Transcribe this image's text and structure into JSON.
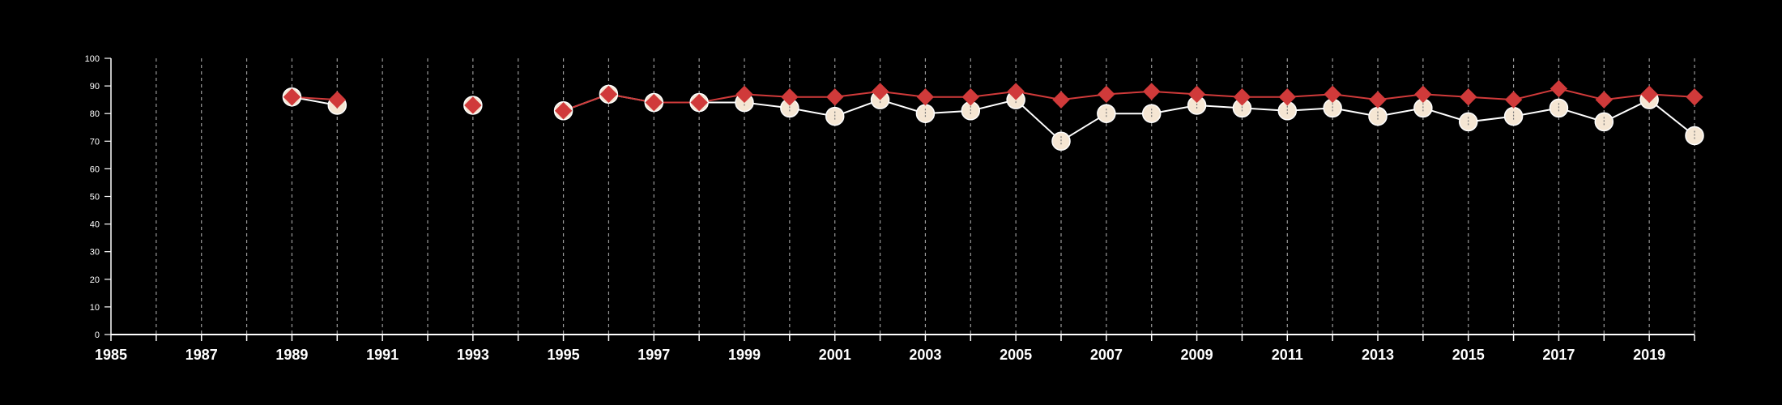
{
  "chart_data": {
    "type": "line",
    "title": "",
    "xlabel": "",
    "ylabel": "",
    "xlim": [
      1985,
      2020
    ],
    "ylim": [
      0,
      100
    ],
    "y_ticks": [
      "0",
      "10",
      "20",
      "30",
      "40",
      "50",
      "60",
      "70",
      "80",
      "90",
      "100"
    ],
    "x_tick_labels": [
      "1985",
      "1987",
      "1989",
      "1991",
      "1993",
      "1995",
      "1997",
      "1999",
      "2001",
      "2003",
      "2005",
      "2007",
      "2009",
      "2011",
      "2013",
      "2015",
      "2017",
      "2019"
    ],
    "vertical_dashed_gridlines_every_year": true,
    "legend": "none",
    "series": [
      {
        "color": "#f5e6d3",
        "line_color": "#ffffff",
        "marker": "circle",
        "segments": [
          [
            [
              1989,
              86
            ],
            [
              1990,
              83
            ]
          ],
          [
            [
              1993,
              83
            ]
          ],
          [
            [
              1995,
              81
            ],
            [
              1996,
              87
            ],
            [
              1997,
              84
            ],
            [
              1998,
              84
            ],
            [
              1999,
              84
            ],
            [
              2000,
              82
            ],
            [
              2001,
              79
            ],
            [
              2002,
              85
            ],
            [
              2003,
              80
            ],
            [
              2004,
              81
            ],
            [
              2005,
              85
            ],
            [
              2006,
              70
            ],
            [
              2007,
              80
            ],
            [
              2008,
              80
            ],
            [
              2009,
              83
            ],
            [
              2010,
              82
            ],
            [
              2011,
              81
            ],
            [
              2012,
              82
            ],
            [
              2013,
              79
            ],
            [
              2014,
              82
            ],
            [
              2015,
              77
            ],
            [
              2016,
              79
            ],
            [
              2017,
              82
            ],
            [
              2018,
              77
            ],
            [
              2019,
              85
            ],
            [
              2020,
              72
            ]
          ]
        ]
      },
      {
        "color": "#d03a3a",
        "line_color": "#d03a3a",
        "marker": "diamond",
        "segments": [
          [
            [
              1989,
              86
            ],
            [
              1990,
              85
            ]
          ],
          [
            [
              1993,
              83
            ]
          ],
          [
            [
              1995,
              81
            ],
            [
              1996,
              87
            ],
            [
              1997,
              84
            ],
            [
              1998,
              84
            ],
            [
              1999,
              87
            ],
            [
              2000,
              86
            ],
            [
              2001,
              86
            ],
            [
              2002,
              88
            ],
            [
              2003,
              86
            ],
            [
              2004,
              86
            ],
            [
              2005,
              88
            ],
            [
              2006,
              85
            ],
            [
              2007,
              87
            ],
            [
              2008,
              88
            ],
            [
              2009,
              87
            ],
            [
              2010,
              86
            ],
            [
              2011,
              86
            ],
            [
              2012,
              87
            ],
            [
              2013,
              85
            ],
            [
              2014,
              87
            ],
            [
              2015,
              86
            ],
            [
              2016,
              85
            ],
            [
              2017,
              89
            ],
            [
              2018,
              85
            ],
            [
              2019,
              87
            ],
            [
              2020,
              86
            ]
          ]
        ]
      }
    ]
  }
}
